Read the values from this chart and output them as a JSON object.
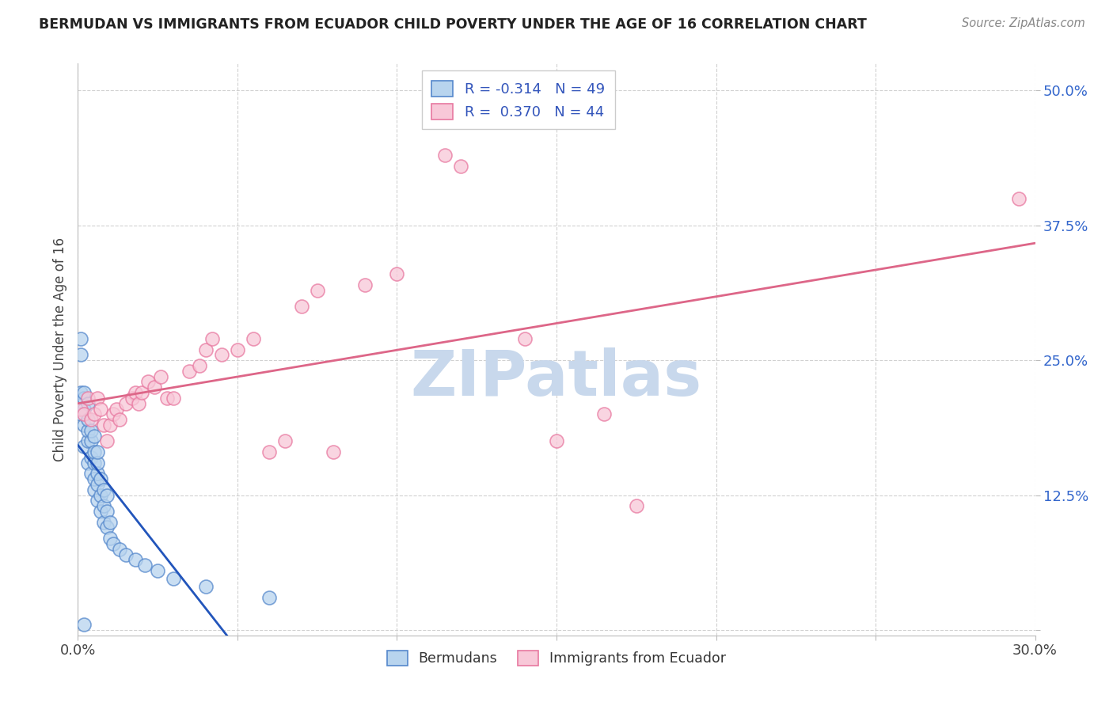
{
  "title": "BERMUDAN VS IMMIGRANTS FROM ECUADOR CHILD POVERTY UNDER THE AGE OF 16 CORRELATION CHART",
  "source": "Source: ZipAtlas.com",
  "ylabel": "Child Poverty Under the Age of 16",
  "xmin": 0.0,
  "xmax": 0.3,
  "ymin": -0.005,
  "ymax": 0.525,
  "xticks": [
    0.0,
    0.05,
    0.1,
    0.15,
    0.2,
    0.25,
    0.3
  ],
  "ytick_positions": [
    0.0,
    0.125,
    0.25,
    0.375,
    0.5
  ],
  "ytick_labels": [
    "",
    "12.5%",
    "25.0%",
    "37.5%",
    "50.0%"
  ],
  "legend1_r": "-0.314",
  "legend1_n": "49",
  "legend2_r": "0.370",
  "legend2_n": "44",
  "blue_fill": "#b8d4ee",
  "blue_edge": "#5588cc",
  "pink_fill": "#f8c8d8",
  "pink_edge": "#e878a0",
  "blue_line_color": "#2255bb",
  "pink_line_color": "#dd6688",
  "watermark": "ZIPatlas",
  "watermark_color": "#c8d8ec",
  "blue_x": [
    0.001,
    0.001,
    0.001,
    0.001,
    0.002,
    0.002,
    0.002,
    0.002,
    0.002,
    0.002,
    0.003,
    0.003,
    0.003,
    0.003,
    0.003,
    0.004,
    0.004,
    0.004,
    0.004,
    0.005,
    0.005,
    0.005,
    0.005,
    0.005,
    0.006,
    0.006,
    0.006,
    0.006,
    0.006,
    0.007,
    0.007,
    0.007,
    0.008,
    0.008,
    0.008,
    0.009,
    0.009,
    0.009,
    0.01,
    0.01,
    0.011,
    0.013,
    0.015,
    0.018,
    0.021,
    0.025,
    0.03,
    0.04,
    0.06
  ],
  "blue_y": [
    0.2,
    0.22,
    0.255,
    0.27,
    0.005,
    0.17,
    0.19,
    0.205,
    0.215,
    0.22,
    0.155,
    0.175,
    0.185,
    0.195,
    0.21,
    0.145,
    0.16,
    0.175,
    0.185,
    0.13,
    0.14,
    0.155,
    0.165,
    0.18,
    0.12,
    0.135,
    0.145,
    0.155,
    0.165,
    0.11,
    0.125,
    0.14,
    0.1,
    0.115,
    0.13,
    0.095,
    0.11,
    0.125,
    0.085,
    0.1,
    0.08,
    0.075,
    0.07,
    0.065,
    0.06,
    0.055,
    0.048,
    0.04,
    0.03
  ],
  "pink_x": [
    0.001,
    0.002,
    0.003,
    0.004,
    0.005,
    0.006,
    0.007,
    0.008,
    0.009,
    0.01,
    0.011,
    0.012,
    0.013,
    0.015,
    0.017,
    0.018,
    0.019,
    0.02,
    0.022,
    0.024,
    0.026,
    0.028,
    0.03,
    0.035,
    0.038,
    0.04,
    0.042,
    0.045,
    0.05,
    0.055,
    0.06,
    0.065,
    0.07,
    0.075,
    0.08,
    0.09,
    0.1,
    0.115,
    0.12,
    0.14,
    0.15,
    0.165,
    0.175,
    0.295
  ],
  "pink_y": [
    0.205,
    0.2,
    0.215,
    0.195,
    0.2,
    0.215,
    0.205,
    0.19,
    0.175,
    0.19,
    0.2,
    0.205,
    0.195,
    0.21,
    0.215,
    0.22,
    0.21,
    0.22,
    0.23,
    0.225,
    0.235,
    0.215,
    0.215,
    0.24,
    0.245,
    0.26,
    0.27,
    0.255,
    0.26,
    0.27,
    0.165,
    0.175,
    0.3,
    0.315,
    0.165,
    0.32,
    0.33,
    0.44,
    0.43,
    0.27,
    0.175,
    0.2,
    0.115,
    0.4
  ]
}
